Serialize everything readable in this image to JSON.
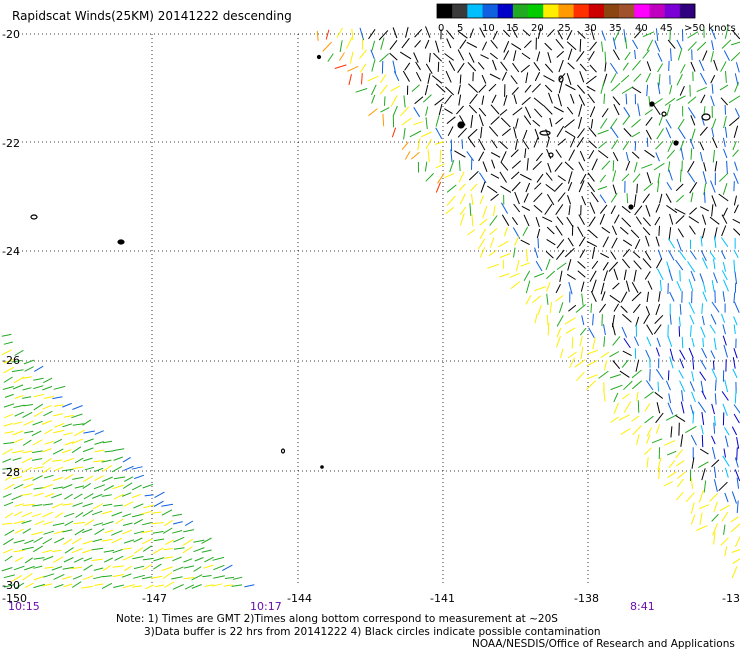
{
  "title": "Rapidscat Winds(25KM) 20141222 descending",
  "legend": {
    "labels": [
      "0",
      "5",
      "10",
      "15",
      "20",
      "25",
      "30",
      "35",
      "40",
      "45",
      ">50 knots"
    ],
    "colors": [
      "#000000",
      "#3a3a3a",
      "#00bfff",
      "#1060e0",
      "#0000c8",
      "#22aa22",
      "#00cc00",
      "#ffee00",
      "#ff9a00",
      "#ff3000",
      "#cc0000",
      "#8b4513",
      "#a0522d",
      "#ff00ff",
      "#c000c0",
      "#7b00d6",
      "#300080"
    ]
  },
  "axes": {
    "lat_labels": [
      "-20",
      "-22",
      "-24",
      "-26",
      "-28",
      "-30"
    ],
    "lon_labels": [
      "-150",
      "-147",
      "-144",
      "-141",
      "-138",
      "-13"
    ]
  },
  "times": [
    "10:15",
    "10:17",
    "8:41"
  ],
  "notes": {
    "line1": "Note: 1) Times are GMT 2)Times along bottom correspond to measurement at ~20S",
    "line2": "3)Data buffer is 22 hrs from 20141222 4) Black circles indicate possible contamination",
    "line3": "NOAA/NESDIS/Office of Research and Applications"
  }
}
